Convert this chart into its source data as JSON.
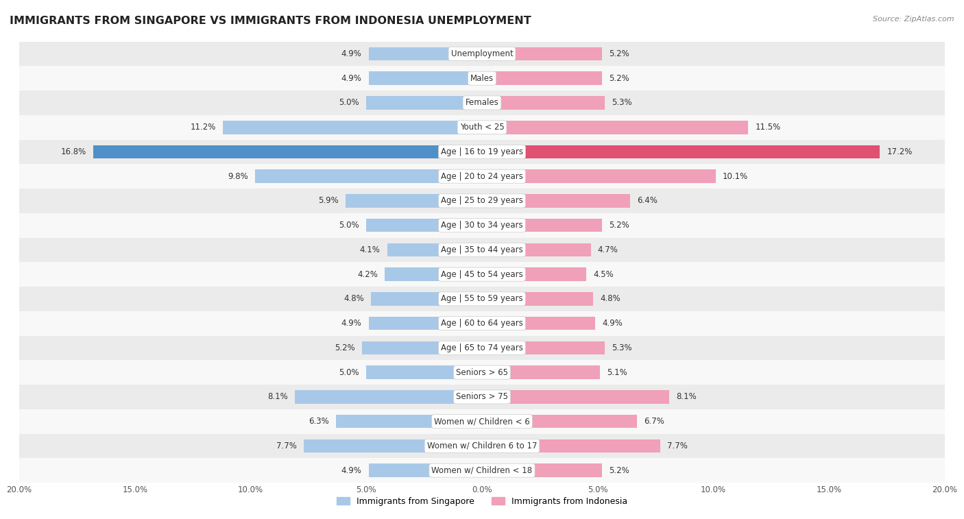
{
  "title": "IMMIGRANTS FROM SINGAPORE VS IMMIGRANTS FROM INDONESIA UNEMPLOYMENT",
  "source": "Source: ZipAtlas.com",
  "categories": [
    "Unemployment",
    "Males",
    "Females",
    "Youth < 25",
    "Age | 16 to 19 years",
    "Age | 20 to 24 years",
    "Age | 25 to 29 years",
    "Age | 30 to 34 years",
    "Age | 35 to 44 years",
    "Age | 45 to 54 years",
    "Age | 55 to 59 years",
    "Age | 60 to 64 years",
    "Age | 65 to 74 years",
    "Seniors > 65",
    "Seniors > 75",
    "Women w/ Children < 6",
    "Women w/ Children 6 to 17",
    "Women w/ Children < 18"
  ],
  "singapore_values": [
    4.9,
    4.9,
    5.0,
    11.2,
    16.8,
    9.8,
    5.9,
    5.0,
    4.1,
    4.2,
    4.8,
    4.9,
    5.2,
    5.0,
    8.1,
    6.3,
    7.7,
    4.9
  ],
  "indonesia_values": [
    5.2,
    5.2,
    5.3,
    11.5,
    17.2,
    10.1,
    6.4,
    5.2,
    4.7,
    4.5,
    4.8,
    4.9,
    5.3,
    5.1,
    8.1,
    6.7,
    7.7,
    5.2
  ],
  "singapore_color": "#a8c8e8",
  "indonesia_color": "#f0a0b8",
  "singapore_highlight_color": "#5090c8",
  "indonesia_highlight_color": "#e05070",
  "row_bg_light": "#ebebeb",
  "row_bg_white": "#f8f8f8",
  "bar_height": 0.55,
  "xlim": 20.0,
  "legend_singapore": "Immigrants from Singapore",
  "legend_indonesia": "Immigrants from Indonesia",
  "title_fontsize": 11.5,
  "value_fontsize": 8.5,
  "category_fontsize": 8.5
}
